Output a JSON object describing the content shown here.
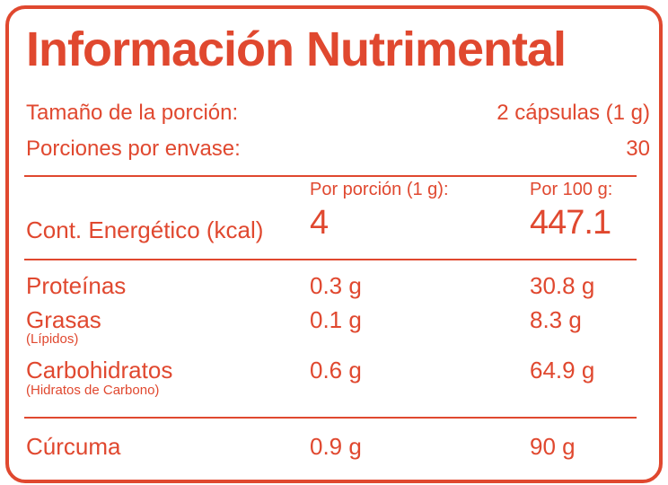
{
  "title": "Información Nutrimental",
  "serving": {
    "size_label": "Tamaño de la porción:",
    "size_value": "2 cápsulas (1 g)",
    "per_container_label": "Porciones por envase:",
    "per_container_value": "30"
  },
  "columns": {
    "per_serving": "Por porción (1 g):",
    "per_100g": "Por 100 g:"
  },
  "energy": {
    "label": "Cont. Energético (kcal)",
    "per_serving": "4",
    "per_100g": "447.1"
  },
  "nutrients": [
    {
      "label": "Proteínas",
      "sub": "",
      "per_serving": "0.3 g",
      "per_100g": "30.8 g"
    },
    {
      "label": "Grasas",
      "sub": "(Lípidos)",
      "per_serving": "0.1 g",
      "per_100g": "8.3 g"
    },
    {
      "label": "Carbohidratos",
      "sub": "(Hidratos de Carbono)",
      "per_serving": "0.6 g",
      "per_100g": "64.9 g"
    }
  ],
  "extra": {
    "label": "Cúrcuma",
    "per_serving": "0.9 g",
    "per_100g": "90 g"
  },
  "colors": {
    "accent": "#e0482f",
    "background": "#ffffff"
  }
}
